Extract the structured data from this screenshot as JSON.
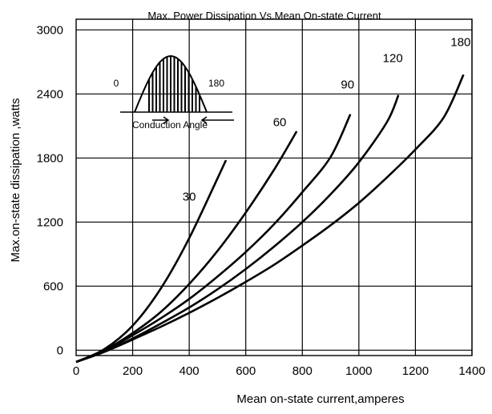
{
  "chart_data": {
    "type": "line",
    "title": "Max. Power Dissipation Vs.Mean On-state  Current",
    "xlabel": "Mean on-state current,amperes",
    "ylabel": "Max.on-state dissipation ,watts",
    "xlim": [
      0,
      1400
    ],
    "ylim": [
      -50,
      3100
    ],
    "grid": true,
    "x_ticks": [
      "0",
      "200",
      "400",
      "600",
      "800",
      "1000",
      "1200",
      "1400"
    ],
    "y_ticks": [
      "0",
      "600",
      "1200",
      "1800",
      "2400",
      "3000"
    ],
    "series": [
      {
        "name": "30",
        "x": [
          0,
          100,
          200,
          300,
          400,
          530
        ],
        "y": [
          -110,
          10,
          230,
          580,
          1050,
          1780
        ]
      },
      {
        "name": "60",
        "x": [
          0,
          100,
          200,
          300,
          400,
          500,
          600,
          700,
          780
        ],
        "y": [
          -110,
          0,
          160,
          360,
          620,
          930,
          1290,
          1690,
          2050
        ]
      },
      {
        "name": "90",
        "x": [
          0,
          100,
          200,
          300,
          400,
          500,
          600,
          700,
          800,
          900,
          970
        ],
        "y": [
          -110,
          -5,
          140,
          300,
          480,
          690,
          920,
          1180,
          1480,
          1810,
          2210
        ]
      },
      {
        "name": "120",
        "x": [
          0,
          100,
          200,
          300,
          400,
          500,
          600,
          700,
          800,
          900,
          1000,
          1100,
          1140
        ],
        "y": [
          -110,
          -15,
          110,
          250,
          400,
          570,
          760,
          970,
          1200,
          1460,
          1760,
          2140,
          2390
        ]
      },
      {
        "name": "180",
        "x": [
          0,
          100,
          200,
          300,
          400,
          500,
          600,
          700,
          800,
          900,
          1000,
          1100,
          1200,
          1300,
          1370
        ],
        "y": [
          -110,
          -15,
          100,
          220,
          350,
          490,
          640,
          800,
          980,
          1170,
          1380,
          1620,
          1880,
          2180,
          2580
        ]
      }
    ],
    "series_label_positions": [
      {
        "text": "30",
        "x": 400,
        "y": 1400
      },
      {
        "text": "60",
        "x": 720,
        "y": 2100
      },
      {
        "text": "90",
        "x": 960,
        "y": 2450
      },
      {
        "text": "120",
        "x": 1120,
        "y": 2700
      },
      {
        "text": "180",
        "x": 1360,
        "y": 2850
      }
    ],
    "inset": {
      "label_start": "0",
      "label_end": "180",
      "caption": "Conduction Angle"
    }
  }
}
